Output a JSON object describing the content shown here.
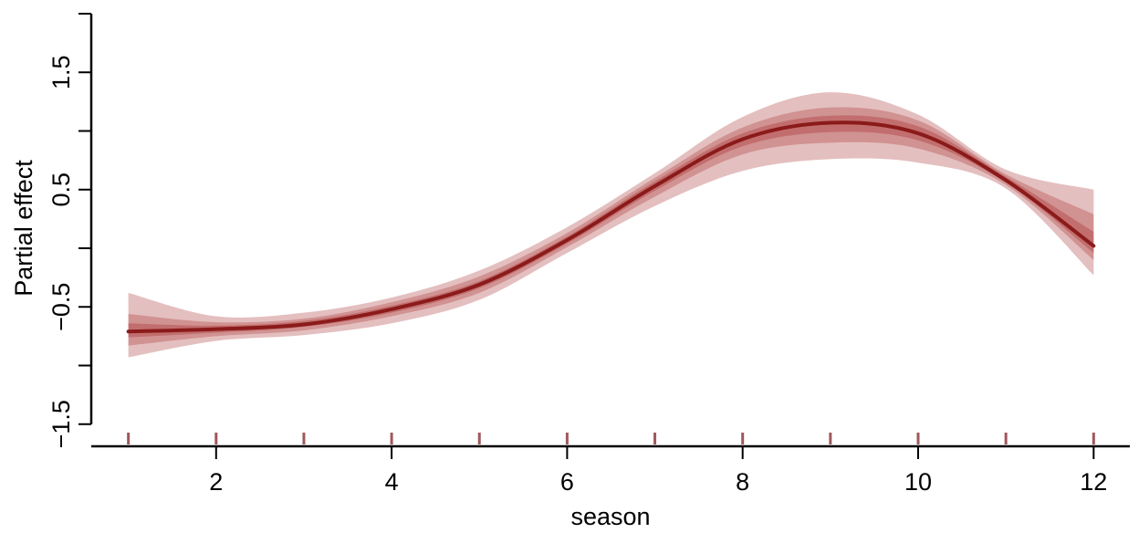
{
  "chart_data": {
    "type": "line",
    "title": "",
    "xlabel": "season",
    "ylabel": "Partial effect",
    "xlim": [
      0.6,
      12.4
    ],
    "ylim": [
      -1.5,
      2.0
    ],
    "x_ticks": [
      2,
      4,
      6,
      8,
      10,
      12
    ],
    "x_tick_labels": [
      "2",
      "4",
      "6",
      "8",
      "10",
      "12"
    ],
    "y_ticks": [
      -1.5,
      -1.0,
      -0.5,
      0.0,
      0.5,
      1.0,
      1.5,
      2.0
    ],
    "y_tick_labels": [
      "−1.5",
      "",
      "−0.5",
      "",
      "0.5",
      "",
      "1.5",
      ""
    ],
    "grid": false,
    "colors": {
      "line": "#8b1a1a",
      "band_color": "#a52a2a",
      "rug": "#a0585c"
    },
    "rug_x": [
      1,
      2,
      3,
      4,
      5,
      6,
      7,
      8,
      9,
      10,
      11,
      12
    ],
    "x": [
      1,
      2,
      3,
      4,
      5,
      6,
      7,
      8,
      9,
      10,
      11,
      12
    ],
    "series": [
      {
        "values": [
          -0.71,
          -0.69,
          -0.65,
          -0.52,
          -0.31,
          0.07,
          0.53,
          0.93,
          1.07,
          0.98,
          0.58,
          0.02
        ]
      }
    ],
    "bands": [
      {
        "level": "outer",
        "lower": [
          -0.93,
          -0.79,
          -0.74,
          -0.64,
          -0.44,
          -0.04,
          0.36,
          0.66,
          0.76,
          0.73,
          0.51,
          -0.23
        ],
        "upper": [
          -0.38,
          -0.58,
          -0.55,
          -0.42,
          -0.19,
          0.18,
          0.64,
          1.12,
          1.33,
          1.14,
          0.67,
          0.5
        ]
      },
      {
        "level": "middle",
        "lower": [
          -0.83,
          -0.75,
          -0.7,
          -0.58,
          -0.38,
          0.01,
          0.44,
          0.8,
          0.9,
          0.85,
          0.54,
          -0.1
        ],
        "upper": [
          -0.56,
          -0.63,
          -0.6,
          -0.46,
          -0.24,
          0.13,
          0.6,
          1.03,
          1.2,
          1.09,
          0.63,
          0.29
        ]
      },
      {
        "level": "inner",
        "lower": [
          -0.76,
          -0.72,
          -0.67,
          -0.55,
          -0.34,
          0.04,
          0.49,
          0.87,
          0.99,
          0.92,
          0.56,
          -0.04
        ],
        "upper": [
          -0.64,
          -0.66,
          -0.62,
          -0.49,
          -0.28,
          0.1,
          0.57,
          0.98,
          1.13,
          1.04,
          0.61,
          0.14
        ]
      }
    ]
  }
}
